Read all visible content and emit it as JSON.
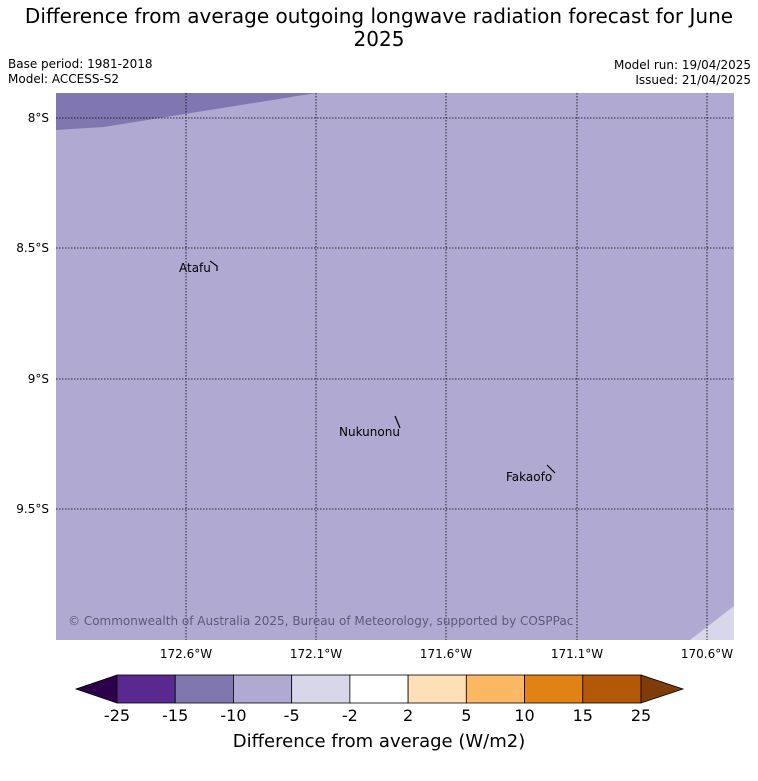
{
  "title": "Difference from average outgoing longwave radiation forecast for June 2025",
  "meta": {
    "base_period": "Base period: 1981-2018",
    "model": "Model: ACCESS-S2",
    "model_run": "Model run: 19/04/2025",
    "issued": "Issued: 21/04/2025"
  },
  "map": {
    "lat_labels": [
      "8°S",
      "8.5°S",
      "9°S",
      "9.5°S"
    ],
    "lon_labels": [
      "172.6°W",
      "172.1°W",
      "171.6°W",
      "171.1°W",
      "170.6°W"
    ],
    "places": [
      {
        "name": "Atafu"
      },
      {
        "name": "Nukunonu"
      },
      {
        "name": "Fakaofo"
      }
    ],
    "copyright": "© Commonwealth of Australia 2025, Bureau of Meteorology, supported by COSPPac",
    "fill_colors": {
      "band_-10_-5": "#b0aad2",
      "band_-15_-10": "#8177b0",
      "band_-5_-2": "#d8d7ea"
    }
  },
  "colorbar": {
    "label": "Difference from average (W/m2)",
    "ticks": [
      "-25",
      "-15",
      "-10",
      "-5",
      "-2",
      "2",
      "5",
      "10",
      "15",
      "25"
    ],
    "colors": [
      "#5a2990",
      "#8177b0",
      "#b0aad2",
      "#d8d7ea",
      "#ffffff",
      "#ffdfb5",
      "#fdb863",
      "#e08214",
      "#b35806"
    ],
    "under_color": "#2d004b",
    "over_color": "#7f3b08"
  }
}
